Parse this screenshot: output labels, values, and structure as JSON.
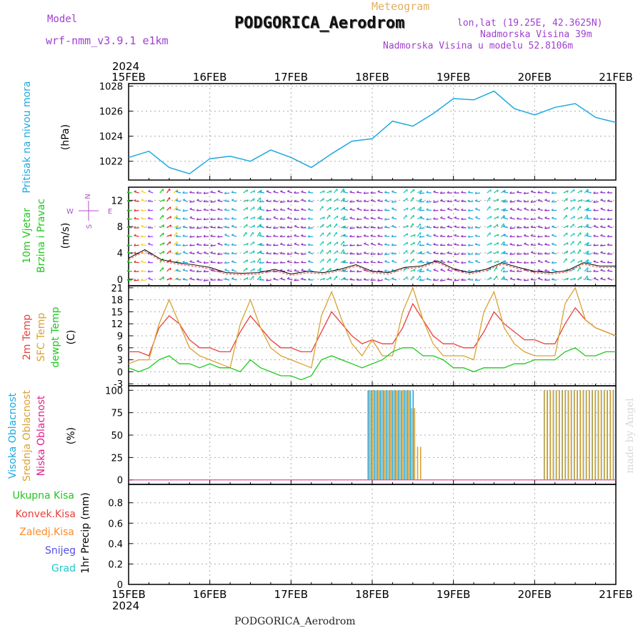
{
  "header": {
    "model_label": "Model",
    "model_name": "wrf-nmm_v3.9.1  e1km",
    "product": "Meteogram",
    "station": "PODGORICA_Aerodrom",
    "lonlat": "lon,lat (19.25E, 42.3625N)",
    "elevation": "Nadmorska Visina 39m",
    "model_elevation": "Nadmorska Visina u modelu 52.8106m",
    "footer_station": "PODGORICA_Aerodrom",
    "credit": "made by Angel",
    "year_top": "2024",
    "year_bottom": "2024"
  },
  "colors": {
    "pressure": "#1ea8e0",
    "temp2m": "#e8403c",
    "sfc": "#d9a234",
    "dewpt": "#1ec81e",
    "high_cloud": "#1ea8e0",
    "mid_cloud": "#d9a234",
    "low_cloud": "#e0208c",
    "total_precip": "#1ec81e",
    "conv_precip": "#e8403c",
    "frozen_precip": "#ff8c28",
    "snow": "#5050e0",
    "hail": "#20c8c8",
    "wind_label": "#1ec81e",
    "compass": "#b050c8",
    "header_purple": "#a040d0",
    "header_gold": "#e0b060",
    "credit": "#d8d8d8"
  },
  "chart_data": [
    {
      "type": "line",
      "panel": "pressure",
      "ylabel_lines": [
        "Pritisak na nivou mora"
      ],
      "unit": "(hPa)",
      "ylim": [
        1020.5,
        1028.2
      ],
      "yticks": [
        1022,
        1024,
        1026,
        1028
      ],
      "x_ticks": [
        "15FEB",
        "16FEB",
        "17FEB",
        "18FEB",
        "19FEB",
        "20FEB",
        "21FEB"
      ],
      "x": [
        0,
        0.25,
        0.5,
        0.75,
        1,
        1.25,
        1.5,
        1.75,
        2,
        2.25,
        2.5,
        2.75,
        3,
        3.25,
        3.5,
        3.75,
        4,
        4.25,
        4.5,
        4.75,
        5,
        5.25,
        5.5,
        5.75,
        6
      ],
      "series": [
        {
          "key": "pressure",
          "values": [
            1022.3,
            1022.8,
            1021.5,
            1021.0,
            1022.2,
            1022.4,
            1022.0,
            1022.9,
            1022.3,
            1021.5,
            1022.6,
            1023.6,
            1023.8,
            1025.2,
            1024.8,
            1025.8,
            1027.0,
            1026.9,
            1027.6,
            1026.2,
            1025.7,
            1026.3,
            1026.6,
            1025.5,
            1025.1
          ]
        }
      ]
    },
    {
      "type": "scatter",
      "panel": "wind",
      "ylabel_lines": [
        "10m Vjetar",
        "Brzina i Pravac"
      ],
      "unit": "(m/s)",
      "ylim": [
        -1,
        14
      ],
      "yticks": [
        0,
        4,
        8,
        12
      ],
      "compass": {
        "north": "N",
        "south": "S",
        "west": "W",
        "east": "E"
      },
      "series": [
        {
          "name": "speed",
          "values": [
            3.2,
            4.5,
            3.0,
            2.5,
            2.2,
            1.8,
            1.0,
            0.9,
            1.0,
            1.5,
            0.8,
            1.2,
            1.0,
            1.5,
            2.2,
            1.2,
            1.0,
            1.8,
            2.0,
            2.8,
            1.6,
            1.0,
            1.5,
            2.5,
            1.8,
            1.2,
            1.0,
            1.3,
            2.5,
            2.0,
            2.0
          ]
        }
      ]
    },
    {
      "type": "line",
      "panel": "temperature",
      "ylabel_lines": [
        "2m Temp",
        "SFC Temp",
        "dewpt Temp"
      ],
      "unit": "(C)",
      "ylim": [
        -3.5,
        21.5
      ],
      "yticks": [
        -3,
        0,
        3,
        6,
        9,
        12,
        15,
        18,
        21
      ],
      "x": [
        0,
        0.125,
        0.25,
        0.375,
        0.5,
        0.625,
        0.75,
        0.875,
        1,
        1.125,
        1.25,
        1.375,
        1.5,
        1.625,
        1.75,
        1.875,
        2,
        2.125,
        2.25,
        2.375,
        2.5,
        2.625,
        2.75,
        2.875,
        3,
        3.125,
        3.25,
        3.375,
        3.5,
        3.625,
        3.75,
        3.875,
        4,
        4.125,
        4.25,
        4.375,
        4.5,
        4.625,
        4.75,
        4.875,
        5,
        5.125,
        5.25,
        5.375,
        5.5,
        5.625,
        5.75,
        5.875,
        6
      ],
      "series": [
        {
          "key": "temp2m",
          "name": "2m Temp",
          "values": [
            5,
            5,
            4,
            11,
            14,
            12,
            8,
            6,
            6,
            5,
            5,
            10,
            14,
            11,
            8,
            6,
            6,
            5,
            5,
            10,
            15,
            12,
            9,
            7,
            8,
            7,
            7,
            11,
            17,
            13,
            9,
            7,
            7,
            6,
            6,
            10,
            15,
            12,
            10,
            8,
            8,
            7,
            7,
            12,
            16,
            13,
            11,
            10,
            9
          ]
        },
        {
          "key": "sfc",
          "name": "SFC Temp",
          "values": [
            2,
            3,
            3,
            12,
            18,
            12,
            6,
            4,
            3,
            2,
            1,
            12,
            18,
            11,
            6,
            4,
            3,
            2,
            1,
            14,
            20,
            13,
            7,
            4,
            8,
            4,
            4,
            15,
            21,
            13,
            7,
            4,
            4,
            4,
            3,
            15,
            20,
            11,
            7,
            5,
            4,
            4,
            4,
            17,
            21,
            13,
            11,
            10,
            9
          ]
        },
        {
          "key": "dewpt",
          "name": "dewpt Temp",
          "values": [
            1,
            0,
            1,
            3,
            4,
            2,
            2,
            1,
            2,
            1,
            1,
            0,
            3,
            1,
            0,
            -1,
            -1,
            -2,
            -1,
            3,
            4,
            3,
            2,
            1,
            2,
            3,
            5,
            6,
            6,
            4,
            4,
            3,
            1,
            1,
            0,
            1,
            1,
            1,
            2,
            2,
            3,
            3,
            3,
            5,
            6,
            4,
            4,
            5,
            5
          ]
        }
      ]
    },
    {
      "type": "bar",
      "panel": "cloud",
      "ylabel_lines": [
        "Visoka Oblacnost",
        "Srednja Oblacnost",
        "Niska Oblacnost"
      ],
      "unit": "(%)",
      "ylim": [
        -5,
        105
      ],
      "yticks": [
        0,
        25,
        50,
        75,
        100
      ],
      "series": [
        {
          "key": "high_cloud",
          "name": "Visoka Oblacnost",
          "spans": [
            [
              2.95,
              3.53,
              100
            ],
            [
              5.12,
              5.99,
              100
            ]
          ]
        },
        {
          "key": "mid_cloud",
          "name": "Srednja Oblacnost",
          "spans": [
            [
              2.95,
              3.62,
              100
            ],
            [
              5.1,
              5.99,
              100
            ]
          ]
        },
        {
          "key": "low_cloud",
          "name": "Niska Oblacnost",
          "spans": []
        }
      ]
    },
    {
      "type": "bar",
      "panel": "precip",
      "ylabel_lines": [
        "1hr Precip (mm)"
      ],
      "ylim": [
        0,
        0.98
      ],
      "yticks": [
        0,
        0.2,
        0.4,
        0.6,
        0.8
      ],
      "legend": [
        {
          "key": "total_precip",
          "label": "Ukupna Kisa"
        },
        {
          "key": "conv_precip",
          "label": "Konvek.Kisa"
        },
        {
          "key": "frozen_precip",
          "label": "Zaledj.Kisa"
        },
        {
          "key": "snow",
          "label": "Snijeg"
        },
        {
          "key": "hail",
          "label": "Grad"
        }
      ],
      "series": []
    }
  ]
}
